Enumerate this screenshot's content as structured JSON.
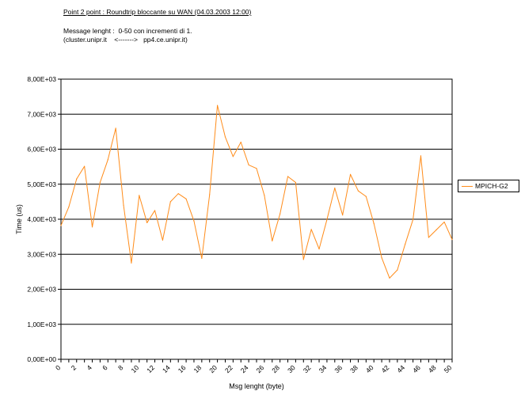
{
  "chart_data": {
    "type": "line",
    "title": "Point 2 point : Roundtrip bloccante su WAN (04.03.2003 12:00)",
    "subtitle": [
      "Message lenght :  0-50 con incrementi di 1.",
      "(cluster.unipr.it    <------->   pp4.ce.unipr.it)"
    ],
    "xlabel": "Msg lenght (byte)",
    "ylabel": "Time (us)",
    "ylim": [
      0,
      8000
    ],
    "xlim": [
      0,
      50
    ],
    "y_ticks": [
      "0,00E+00",
      "1,00E+03",
      "2,00E+03",
      "3,00E+03",
      "4,00E+03",
      "5,00E+03",
      "6,00E+03",
      "7,00E+03",
      "8,00E+03"
    ],
    "x_ticks": [
      "0",
      "2",
      "4",
      "6",
      "8",
      "10",
      "12",
      "14",
      "16",
      "18",
      "20",
      "22",
      "24",
      "26",
      "28",
      "30",
      "32",
      "34",
      "36",
      "38",
      "40",
      "42",
      "44",
      "46",
      "48",
      "50"
    ],
    "grid": true,
    "legend_position": "right",
    "series": [
      {
        "name": "MPICH-G2",
        "color": "#ff8c1a",
        "x": [
          0,
          1,
          2,
          3,
          4,
          5,
          6,
          7,
          8,
          9,
          10,
          11,
          12,
          13,
          14,
          15,
          16,
          17,
          18,
          19,
          20,
          21,
          22,
          23,
          24,
          25,
          26,
          27,
          28,
          29,
          30,
          31,
          32,
          33,
          34,
          35,
          36,
          37,
          38,
          39,
          40,
          41,
          42,
          43,
          44,
          45,
          46,
          47,
          48,
          49,
          50
        ],
        "values": [
          3820,
          4350,
          5150,
          5510,
          3780,
          5050,
          5700,
          6600,
          4400,
          2750,
          4680,
          3900,
          4250,
          3400,
          4500,
          4730,
          4580,
          3950,
          2880,
          4700,
          7250,
          6350,
          5790,
          6200,
          5550,
          5450,
          4680,
          3380,
          4150,
          5220,
          5050,
          2850,
          3710,
          3150,
          3990,
          4890,
          4120,
          5280,
          4810,
          4650,
          3880,
          2900,
          2320,
          2550,
          3290,
          3990,
          5810,
          3480,
          3700,
          3920,
          3420
        ]
      }
    ]
  }
}
